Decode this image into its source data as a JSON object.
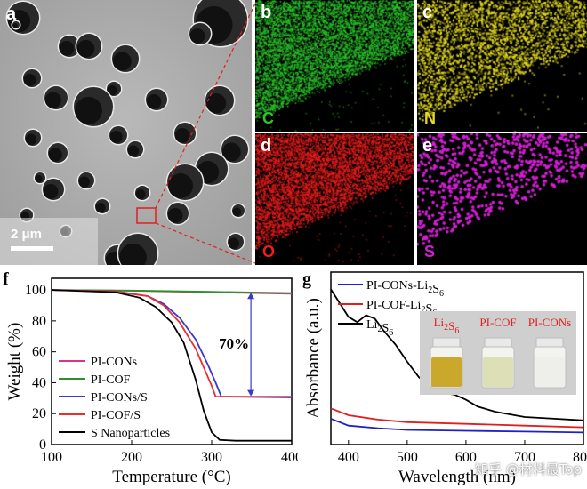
{
  "panels": {
    "a": {
      "label": "a",
      "scale_bar": "2 μm"
    },
    "b": {
      "label": "b",
      "element": "C",
      "color": "#2cc72c"
    },
    "c": {
      "label": "c",
      "element": "N",
      "color": "#e6dc1e"
    },
    "d": {
      "label": "d",
      "element": "O",
      "color": "#f01e1e"
    },
    "e": {
      "label": "e",
      "element": "S",
      "color": "#d21ed2"
    },
    "f": {
      "label": "f"
    },
    "g": {
      "label": "g"
    }
  },
  "watermark": "知乎 @材料最Top",
  "chart_data": [
    {
      "type": "line",
      "panel": "f",
      "xlabel": "Temperature (°C)",
      "ylabel": "Weight (%)",
      "xlim": [
        100,
        400
      ],
      "ylim": [
        0,
        100
      ],
      "xticks": [
        "100",
        "200",
        "300",
        "400"
      ],
      "yticks": [
        "0",
        "20",
        "40",
        "60",
        "80",
        "100"
      ],
      "annotation": "70%",
      "series": [
        {
          "name": "PI-CONs",
          "color": "#e0308a",
          "x": [
            100,
            200,
            300,
            400
          ],
          "y": [
            100,
            99.5,
            98.5,
            97.5
          ]
        },
        {
          "name": "PI-COF",
          "color": "#2f8f2f",
          "x": [
            100,
            200,
            300,
            400
          ],
          "y": [
            100,
            99.6,
            98.8,
            98
          ]
        },
        {
          "name": "PI-CONs/S",
          "color": "#3a3ac8",
          "x": [
            100,
            180,
            220,
            240,
            260,
            280,
            295,
            305,
            312,
            320,
            400
          ],
          "y": [
            100,
            99,
            96,
            91,
            82,
            68,
            52,
            40,
            31,
            31,
            30.5
          ]
        },
        {
          "name": "PI-COF/S",
          "color": "#e83030",
          "x": [
            100,
            180,
            220,
            240,
            260,
            280,
            290,
            300,
            305,
            320,
            400
          ],
          "y": [
            100,
            99,
            96,
            90,
            79,
            62,
            50,
            38,
            31,
            31,
            31
          ]
        },
        {
          "name": "S Nanoparticles",
          "color": "#000000",
          "x": [
            100,
            180,
            210,
            230,
            250,
            265,
            280,
            290,
            300,
            310,
            330,
            400
          ],
          "y": [
            100,
            98.5,
            95,
            89,
            79,
            66,
            42,
            22,
            8,
            3,
            2.5,
            2.5
          ]
        }
      ]
    },
    {
      "type": "line",
      "panel": "g",
      "xlabel": "Wavelength (nm)",
      "ylabel": "Absorbance (a.u.)",
      "xlim": [
        370,
        800
      ],
      "ylim": [
        0,
        1
      ],
      "xticks": [
        "400",
        "500",
        "600",
        "700",
        "800"
      ],
      "series": [
        {
          "name": "PI-CONs-Li2S6",
          "color": "#2020c8",
          "x": [
            370,
            400,
            450,
            500,
            600,
            700,
            800
          ],
          "y": [
            0.15,
            0.11,
            0.095,
            0.085,
            0.08,
            0.075,
            0.07
          ]
        },
        {
          "name": "PI-COF-Li2S6",
          "color": "#e02020",
          "x": [
            370,
            400,
            450,
            500,
            600,
            700,
            800
          ],
          "y": [
            0.21,
            0.17,
            0.145,
            0.13,
            0.12,
            0.11,
            0.1
          ]
        },
        {
          "name": "Li2S6",
          "color": "#000000",
          "x": [
            370,
            385,
            400,
            415,
            430,
            445,
            460,
            480,
            500,
            520,
            540,
            560,
            580,
            600,
            620,
            650,
            700,
            750,
            800
          ],
          "y": [
            0.9,
            0.82,
            0.74,
            0.71,
            0.75,
            0.73,
            0.66,
            0.58,
            0.48,
            0.39,
            0.34,
            0.3,
            0.29,
            0.26,
            0.22,
            0.19,
            0.16,
            0.15,
            0.14
          ]
        }
      ],
      "inset_vials": [
        {
          "label": "Li2S6",
          "color": "#e02020",
          "liquid": "#c9a82b"
        },
        {
          "label": "PI-COF",
          "color": "#e02020",
          "liquid": "#dde0b6"
        },
        {
          "label": "PI-CONs",
          "color": "#e02020",
          "liquid": "#eeeeea"
        }
      ]
    }
  ]
}
